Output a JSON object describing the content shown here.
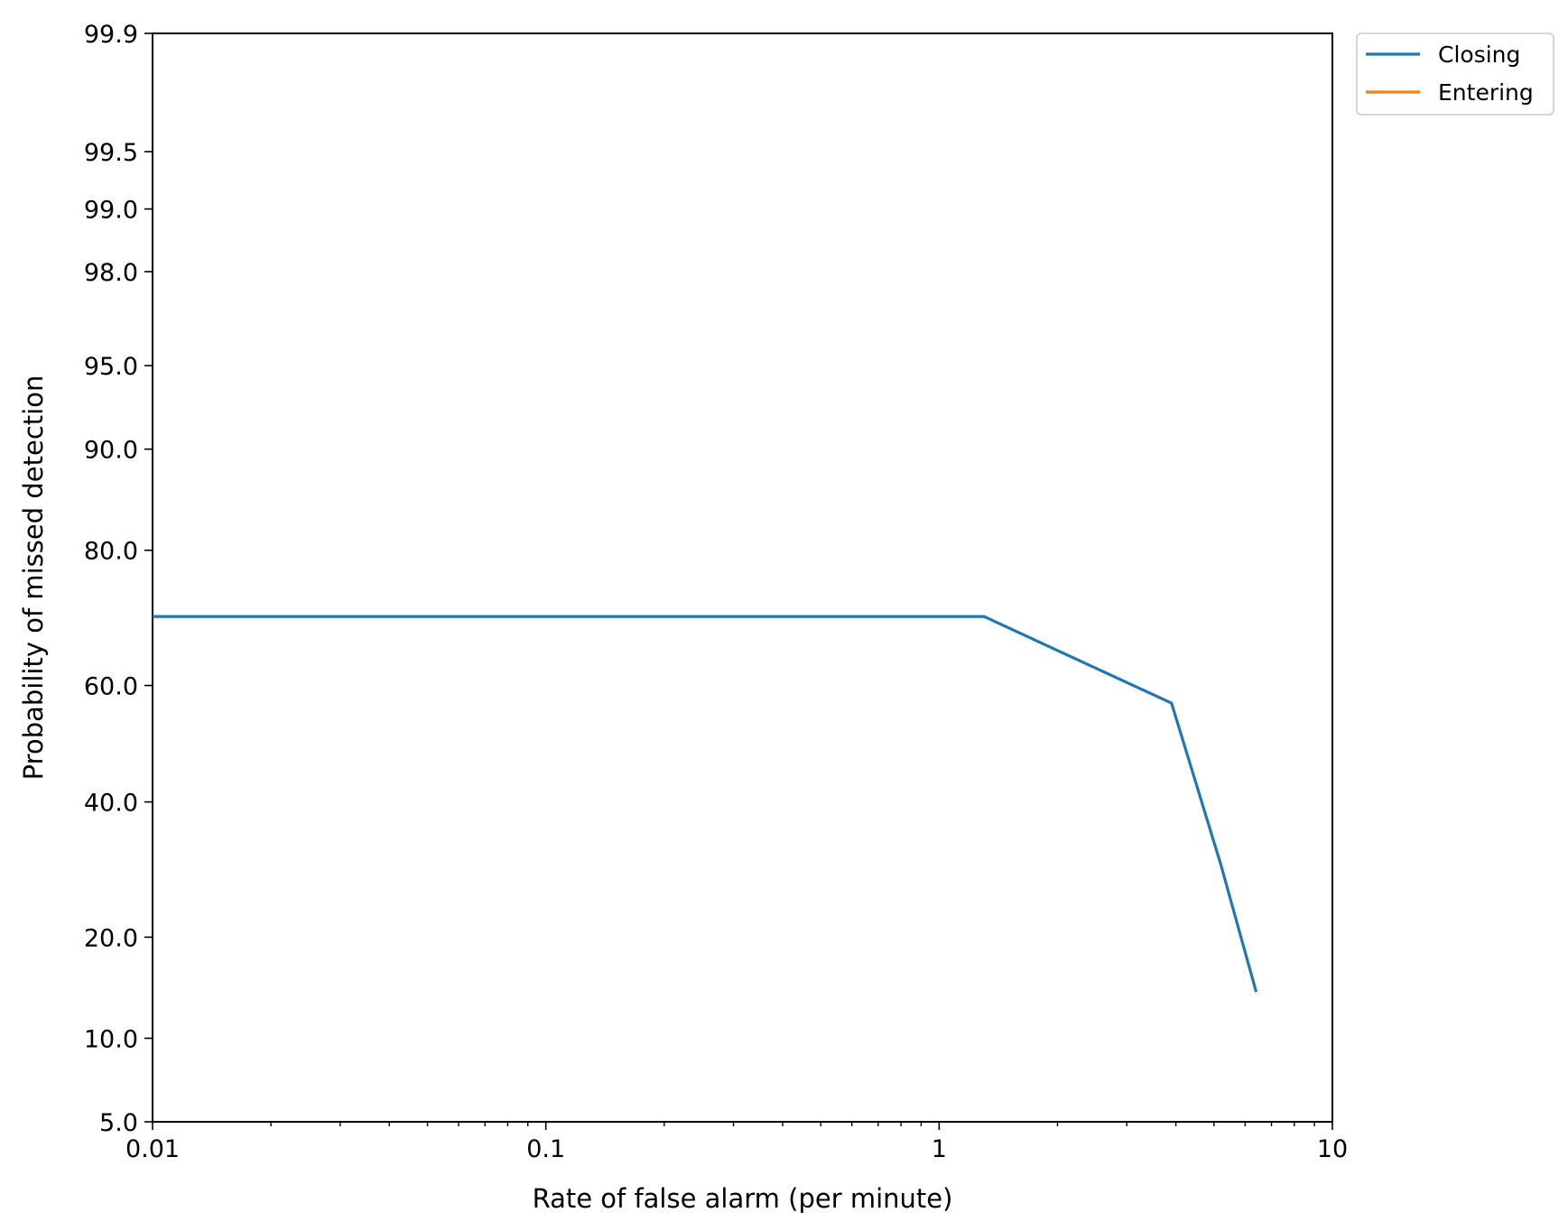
{
  "chart_data": {
    "type": "line",
    "title": "",
    "xlabel": "Rate of false alarm (per minute)",
    "ylabel": "Probability of missed detection",
    "xscale": "log",
    "yscale": "normal-probability",
    "xlim": [
      0.01,
      10
    ],
    "ylim": [
      5.0,
      99.9
    ],
    "x_ticks": [
      {
        "value": 0.01,
        "label": "0.01"
      },
      {
        "value": 0.1,
        "label": "0.1"
      },
      {
        "value": 1,
        "label": "1"
      },
      {
        "value": 10,
        "label": "10"
      }
    ],
    "y_ticks": [
      {
        "value": 5.0,
        "label": "5.0"
      },
      {
        "value": 10.0,
        "label": "10.0"
      },
      {
        "value": 20.0,
        "label": "20.0"
      },
      {
        "value": 40.0,
        "label": "40.0"
      },
      {
        "value": 60.0,
        "label": "60.0"
      },
      {
        "value": 80.0,
        "label": "80.0"
      },
      {
        "value": 90.0,
        "label": "90.0"
      },
      {
        "value": 95.0,
        "label": "95.0"
      },
      {
        "value": 98.0,
        "label": "98.0"
      },
      {
        "value": 99.0,
        "label": "99.0"
      },
      {
        "value": 99.5,
        "label": "99.5"
      },
      {
        "value": 99.9,
        "label": "99.9"
      }
    ],
    "grid": false,
    "legend_position": "outside-top-right",
    "series": [
      {
        "name": "Closing",
        "color": "#1f77b4",
        "x": [
          0.01,
          1.3,
          3.9,
          5.2,
          6.4
        ],
        "y": [
          71.0,
          71.0,
          57.0,
          30.0,
          14.0
        ]
      },
      {
        "name": "Entering",
        "color": "#ff7f0e",
        "x": [],
        "y": []
      }
    ]
  }
}
